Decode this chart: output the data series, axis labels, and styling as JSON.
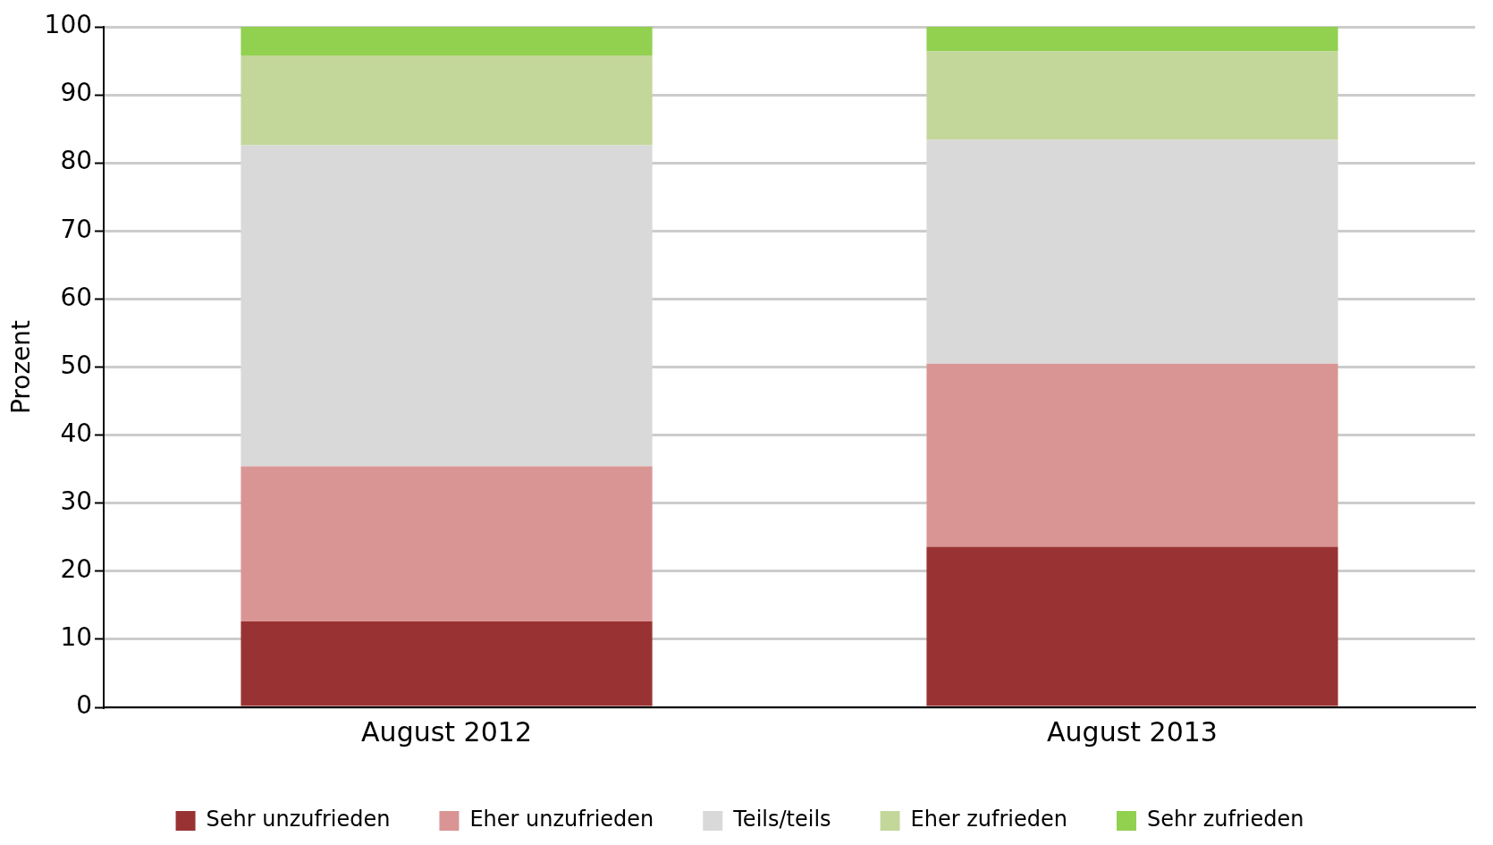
{
  "chart_data": {
    "type": "bar",
    "stacked": true,
    "ylabel": "Prozent",
    "categories": [
      "August 2012",
      "August 2013"
    ],
    "series": [
      {
        "name": "Sehr unzufrieden",
        "color": "#993333",
        "values": [
          12.6,
          23.6
        ]
      },
      {
        "name": "Eher unzufrieden",
        "color": "#d99594",
        "values": [
          22.8,
          26.9
        ]
      },
      {
        "name": "Teils/teils",
        "color": "#d9d9d9",
        "values": [
          47.2,
          32.9
        ]
      },
      {
        "name": "Eher zufrieden",
        "color": "#c4d79b",
        "values": [
          13.2,
          13.0
        ]
      },
      {
        "name": "Sehr zufrieden",
        "color": "#92d050",
        "values": [
          4.2,
          3.6
        ]
      }
    ],
    "ylim": [
      0,
      100
    ],
    "yticks": [
      0,
      10,
      20,
      30,
      40,
      50,
      60,
      70,
      80,
      90,
      100
    ],
    "grid": "y",
    "legend": "bottom"
  }
}
